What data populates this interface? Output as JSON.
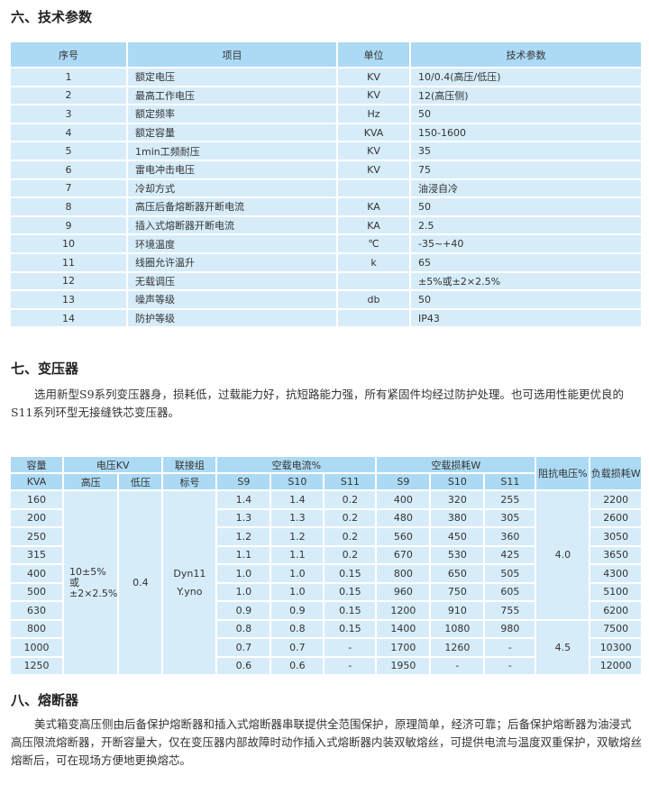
{
  "section6": {
    "title": "六、技术参数",
    "headers": [
      "序号",
      "项目",
      "单位",
      "技术参数"
    ],
    "rows": [
      [
        "1",
        "额定电压",
        "KV",
        "10/0.4(高压/低压)"
      ],
      [
        "2",
        "最高工作电压",
        "KV",
        "12(高压侧)"
      ],
      [
        "3",
        "额定频率",
        "Hz",
        "50"
      ],
      [
        "4",
        "额定容量",
        "KVA",
        "150-1600"
      ],
      [
        "5",
        "1min工频耐压",
        "KV",
        "35"
      ],
      [
        "6",
        "雷电冲击电压",
        "KV",
        "75"
      ],
      [
        "7",
        "冷却方式",
        "",
        "油浸自冷"
      ],
      [
        "8",
        "高压后备熔断器开断电流",
        "KA",
        "50"
      ],
      [
        "9",
        "插入式熔断器开断电流",
        "KA",
        "2.5"
      ],
      [
        "10",
        "环境温度",
        "℃",
        "-35~+40"
      ],
      [
        "11",
        "线圈允许温升",
        "k",
        "65"
      ],
      [
        "12",
        "无载调压",
        "",
        "±5%或±2×2.5%"
      ],
      [
        "13",
        "噪声等级",
        "db",
        "50"
      ],
      [
        "14",
        "防护等级",
        "",
        "IP43"
      ]
    ]
  },
  "section7": {
    "title": "七、变压器",
    "paragraph": "选用新型S9系列变压器身，损耗低，过载能力好，抗短路能力强，所有紧固件均经过防护处理。也可选用性能更优良的S11系列环型无接缝铁芯变压器。",
    "table": {
      "h_capacity_1": "容量",
      "h_capacity_2": "KVA",
      "h_voltage": "电压KV",
      "h_high": "高压",
      "h_low": "低压",
      "h_group_1": "联接组",
      "h_group_2": "标号",
      "h_noload_current": "空载电流%",
      "h_noload_loss": "空载损耗W",
      "h_s9": "S9",
      "h_s10": "S10",
      "h_s11": "S11",
      "h_impedance": "阻抗电压%",
      "h_load_loss": "负载损耗W",
      "high_voltage_1": "10±5%",
      "high_voltage_2": "或",
      "high_voltage_3": "±2×2.5%",
      "low_voltage": "0.4",
      "group_1": "Dyn11",
      "group_2": "Y.yno",
      "impedance_a": "4.0",
      "impedance_b": "4.5",
      "rows": [
        [
          "160",
          "1.4",
          "1.4",
          "0.2",
          "400",
          "320",
          "255",
          "2200"
        ],
        [
          "200",
          "1.3",
          "1.3",
          "0.2",
          "480",
          "380",
          "305",
          "2600"
        ],
        [
          "250",
          "1.2",
          "1.2",
          "0.2",
          "560",
          "450",
          "360",
          "3050"
        ],
        [
          "315",
          "1.1",
          "1.1",
          "0.2",
          "670",
          "530",
          "425",
          "3650"
        ],
        [
          "400",
          "1.0",
          "1.0",
          "0.15",
          "800",
          "650",
          "505",
          "4300"
        ],
        [
          "500",
          "1.0",
          "1.0",
          "0.15",
          "960",
          "750",
          "605",
          "5100"
        ],
        [
          "630",
          "0.9",
          "0.9",
          "0.15",
          "1200",
          "910",
          "755",
          "6200"
        ],
        [
          "800",
          "0.8",
          "0.8",
          "0.15",
          "1400",
          "1080",
          "980",
          "7500"
        ],
        [
          "1000",
          "0.7",
          "0.7",
          "-",
          "1700",
          "1260",
          "-",
          "10300"
        ],
        [
          "1250",
          "0.6",
          "0.6",
          "-",
          "1950",
          "-",
          "-",
          "12000"
        ]
      ]
    }
  },
  "section8": {
    "title": "八、熔断器",
    "paragraph": "美式箱变高压侧由后备保护熔断器和插入式熔断器串联提供全范围保护，原理简单，经济可靠；后备保护熔断器为油浸式高压限流熔断器，开断容量大，仅在变压器内部故障时动作插入式熔断器内装双敏熔丝，可提供电流与温度双重保护，双敏熔丝熔断后，可在现场方便地更换熔芯。"
  }
}
